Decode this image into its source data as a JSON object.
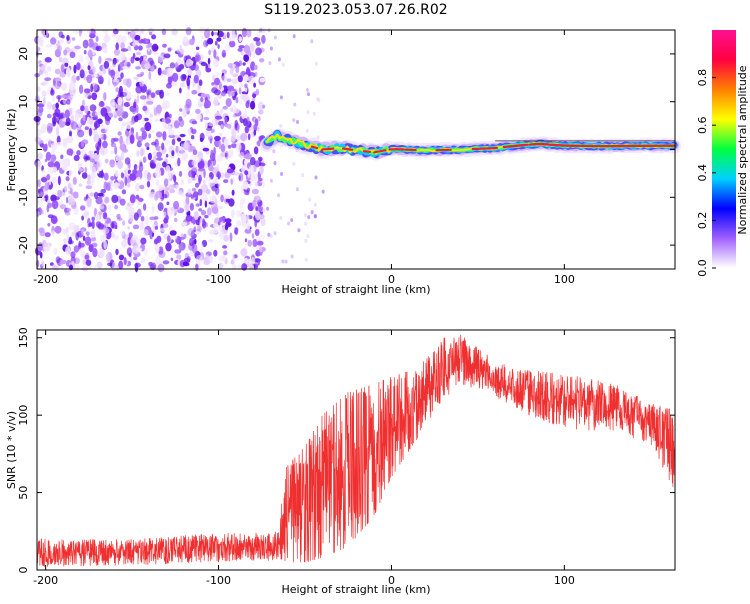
{
  "title": "S119.2023.053.07.26.R02",
  "colors": {
    "snr_line": "#f03030",
    "ridge": "#e8203c",
    "colormap": [
      "#ffffff",
      "#a060ff",
      "#0000ff",
      "#00d0ff",
      "#00ff40",
      "#ffff00",
      "#ff8000",
      "#ff0040",
      "#ff1090"
    ]
  },
  "chart_data": [
    {
      "type": "heatmap",
      "name": "spectrogram",
      "xlabel": "Height of straight line (km)",
      "ylabel": "Frequency (Hz)",
      "xlim": [
        -205,
        164
      ],
      "ylim": [
        -25,
        25
      ],
      "xticks": [
        -200,
        -100,
        0,
        100
      ],
      "xtick_labels": [
        "-200",
        "-100",
        "0",
        "100"
      ],
      "yticks": [
        -20,
        -10,
        0,
        10,
        20
      ],
      "ytick_labels": [
        "-20",
        "-10",
        "0",
        "10",
        "20"
      ],
      "noise_region_x": [
        -205,
        -74
      ],
      "signal_ridge": [
        {
          "x": -72,
          "f": 1.5
        },
        {
          "x": -66,
          "f": 3.0
        },
        {
          "x": -60,
          "f": 2.0
        },
        {
          "x": -50,
          "f": 1.0
        },
        {
          "x": -40,
          "f": 0.0
        },
        {
          "x": -30,
          "f": 0.3
        },
        {
          "x": -20,
          "f": -0.2
        },
        {
          "x": -10,
          "f": -0.6
        },
        {
          "x": 0,
          "f": 0.1
        },
        {
          "x": 20,
          "f": -0.2
        },
        {
          "x": 40,
          "f": 0.0
        },
        {
          "x": 60,
          "f": 0.3
        },
        {
          "x": 70,
          "f": 0.7
        },
        {
          "x": 85,
          "f": 1.2
        },
        {
          "x": 100,
          "f": 0.8
        },
        {
          "x": 120,
          "f": 0.7
        },
        {
          "x": 164,
          "f": 0.8
        }
      ],
      "colorbar": {
        "label": "Normalized spectral amplitude",
        "range": [
          0,
          1
        ],
        "ticks": [
          0.0,
          0.2,
          0.4,
          0.6,
          0.8
        ],
        "tick_labels": [
          "0.0",
          "0.2",
          "0.4",
          "0.6",
          "0.8"
        ]
      }
    },
    {
      "type": "line",
      "name": "snr",
      "xlabel": "Height of straight line (km)",
      "ylabel": "SNR (10 * v/v)",
      "xlim": [
        -205,
        164
      ],
      "ylim": [
        0,
        155
      ],
      "xticks": [
        -200,
        -100,
        0,
        100
      ],
      "xtick_labels": [
        "-200",
        "-100",
        "0",
        "100"
      ],
      "yticks": [
        0,
        50,
        100,
        150
      ],
      "ytick_labels": [
        "0",
        "50",
        "100",
        "150"
      ],
      "envelope": [
        {
          "x": -205,
          "lo": 2,
          "hi": 20
        },
        {
          "x": -150,
          "lo": 3,
          "hi": 20
        },
        {
          "x": -100,
          "lo": 5,
          "hi": 24
        },
        {
          "x": -65,
          "lo": 6,
          "hi": 25
        },
        {
          "x": -62,
          "lo": 5,
          "hi": 65
        },
        {
          "x": -50,
          "lo": 5,
          "hi": 80
        },
        {
          "x": -40,
          "lo": 8,
          "hi": 100
        },
        {
          "x": -25,
          "lo": 15,
          "hi": 115
        },
        {
          "x": -10,
          "lo": 35,
          "hi": 120
        },
        {
          "x": 0,
          "lo": 60,
          "hi": 125
        },
        {
          "x": 15,
          "lo": 85,
          "hi": 130
        },
        {
          "x": 30,
          "lo": 110,
          "hi": 150
        },
        {
          "x": 40,
          "lo": 120,
          "hi": 152
        },
        {
          "x": 55,
          "lo": 115,
          "hi": 140
        },
        {
          "x": 70,
          "lo": 105,
          "hi": 130
        },
        {
          "x": 90,
          "lo": 95,
          "hi": 128
        },
        {
          "x": 110,
          "lo": 90,
          "hi": 125
        },
        {
          "x": 130,
          "lo": 90,
          "hi": 120
        },
        {
          "x": 150,
          "lo": 80,
          "hi": 110
        },
        {
          "x": 164,
          "lo": 50,
          "hi": 105
        }
      ]
    }
  ]
}
